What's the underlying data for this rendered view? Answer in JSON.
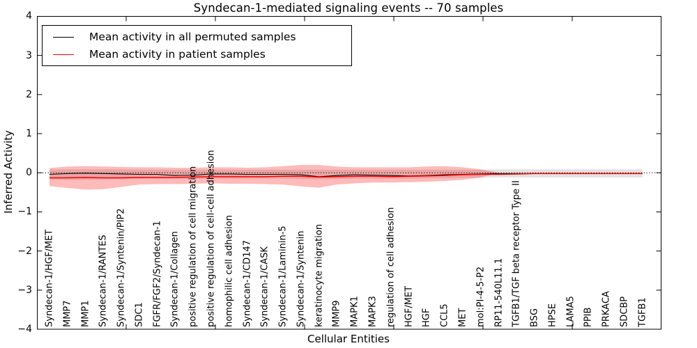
{
  "title": "Syndecan-1-mediated signaling events -- 70 samples",
  "axes": {
    "x_label": "Cellular Entities",
    "y_label": "Inferred Activity",
    "y_tick_labels": [
      "4",
      "3",
      "2",
      "1",
      "0",
      "−1",
      "−2",
      "−3",
      "−4"
    ],
    "y_tick_values": [
      4,
      3,
      2,
      1,
      0,
      -1,
      -2,
      -3,
      -4
    ]
  },
  "legend": {
    "items": [
      {
        "label": "Mean activity in all permuted samples",
        "color": "#000000"
      },
      {
        "label": "Mean activity in patient samples",
        "color": "#ff0000"
      }
    ]
  },
  "colors": {
    "permuted_line": "#000000",
    "patient_line": "#ff0000",
    "patient_band": "#ff0000",
    "permuted_band": "#000000",
    "zero_line": "#000000",
    "axis": "#000000"
  },
  "chart_data": {
    "type": "line",
    "title": "Syndecan-1-mediated signaling events -- 70 samples",
    "xlabel": "Cellular Entities",
    "ylabel": "Inferred Activity",
    "ylim": [
      -4,
      4
    ],
    "grid": false,
    "legend_position": "upper left",
    "zero_line": 0,
    "categories": [
      "Syndecan-1/HGF/MET",
      "MMP7",
      "MMP1",
      "Syndecan-1/RANTES",
      "Syndecan-1/Syntenin/PIP2",
      "SDC1",
      "FGFR/FGF2/Syndecan-1",
      "Syndecan-1/Collagen",
      "positive regulation of cell migration",
      "positive regulation of cell-cell adhesion",
      "homophilic cell adhesion",
      "Syndecan-1/CD147",
      "Syndecan-1/CASK",
      "Syndecan-1/Laminin-5",
      "Syndecan-1/Syntenin",
      "keratinocyte migration",
      "MMP9",
      "MAPK1",
      "MAPK3",
      "regulation of cell adhesion",
      "HGF/MET",
      "HGF",
      "CCL5",
      "MET",
      "mol:PI-4-5-P2",
      "RP11-540L11.1",
      "TGFB1/TGF beta receptor Type II",
      "BSG",
      "HPSE",
      "LAMA5",
      "PPIB",
      "PRKACA",
      "SDCBP",
      "TGFB1"
    ],
    "series": [
      {
        "name": "Mean activity in all permuted samples",
        "color": "#000000",
        "values": [
          -0.04,
          -0.02,
          -0.01,
          -0.02,
          -0.03,
          -0.04,
          -0.04,
          -0.07,
          -0.06,
          -0.03,
          -0.03,
          -0.04,
          -0.04,
          -0.04,
          -0.05,
          -0.1,
          -0.07,
          -0.05,
          -0.06,
          -0.07,
          -0.08,
          -0.07,
          -0.05,
          -0.04,
          -0.03,
          -0.02,
          -0.02,
          -0.02,
          -0.02,
          -0.02,
          -0.02,
          -0.02,
          -0.02,
          -0.02
        ]
      },
      {
        "name": "Mean activity in patient samples",
        "color": "#ff0000",
        "values": [
          -0.13,
          -0.13,
          -0.12,
          -0.13,
          -0.13,
          -0.12,
          -0.12,
          -0.12,
          -0.11,
          -0.1,
          -0.1,
          -0.1,
          -0.1,
          -0.09,
          -0.09,
          -0.11,
          -0.1,
          -0.09,
          -0.09,
          -0.1,
          -0.09,
          -0.08,
          -0.07,
          -0.05,
          -0.04,
          -0.04,
          -0.03,
          -0.02,
          -0.02,
          -0.02,
          -0.02,
          -0.02,
          -0.02,
          -0.02
        ]
      }
    ],
    "bands": [
      {
        "name": "permuted-samples-range",
        "color": "#000000",
        "opacity": 0.11,
        "start_index": 0,
        "upper": [
          0.08,
          0.09,
          0.09,
          0.09,
          0.09,
          0.08,
          0.08,
          0.08,
          0.08,
          0.08,
          0.08,
          0.08,
          0.08,
          0.08,
          0.08,
          0.08,
          0.08,
          0.08,
          0.08,
          0.08,
          0.08,
          0.08,
          0.08,
          0.08,
          0.08,
          0.09,
          0.09,
          0.09,
          0.09,
          0.09,
          0.09,
          0.09,
          0.09,
          0.09
        ],
        "lower": [
          -0.17,
          -0.18,
          -0.18,
          -0.17,
          -0.17,
          -0.16,
          -0.16,
          -0.16,
          -0.16,
          -0.15,
          -0.15,
          -0.15,
          -0.15,
          -0.15,
          -0.16,
          -0.17,
          -0.16,
          -0.15,
          -0.15,
          -0.15,
          -0.15,
          -0.14,
          -0.14,
          -0.13,
          -0.13,
          -0.12,
          -0.12,
          -0.12,
          -0.12,
          -0.12,
          -0.12,
          -0.12,
          -0.12,
          -0.12
        ]
      },
      {
        "name": "patient-samples-range",
        "color": "#ff0000",
        "opacity": 0.27,
        "start_index": 0,
        "upper": [
          0.12,
          0.16,
          0.17,
          0.16,
          0.15,
          0.14,
          0.14,
          0.13,
          0.13,
          0.14,
          0.14,
          0.13,
          0.14,
          0.17,
          0.2,
          0.2,
          0.16,
          0.14,
          0.14,
          0.14,
          0.14,
          0.16,
          0.17,
          0.14,
          0.09,
          0.0
        ],
        "lower": [
          -0.34,
          -0.39,
          -0.43,
          -0.42,
          -0.36,
          -0.3,
          -0.29,
          -0.29,
          -0.28,
          -0.27,
          -0.28,
          -0.28,
          -0.29,
          -0.3,
          -0.35,
          -0.38,
          -0.3,
          -0.27,
          -0.25,
          -0.25,
          -0.24,
          -0.23,
          -0.21,
          -0.18,
          -0.12,
          0.0
        ]
      }
    ]
  }
}
